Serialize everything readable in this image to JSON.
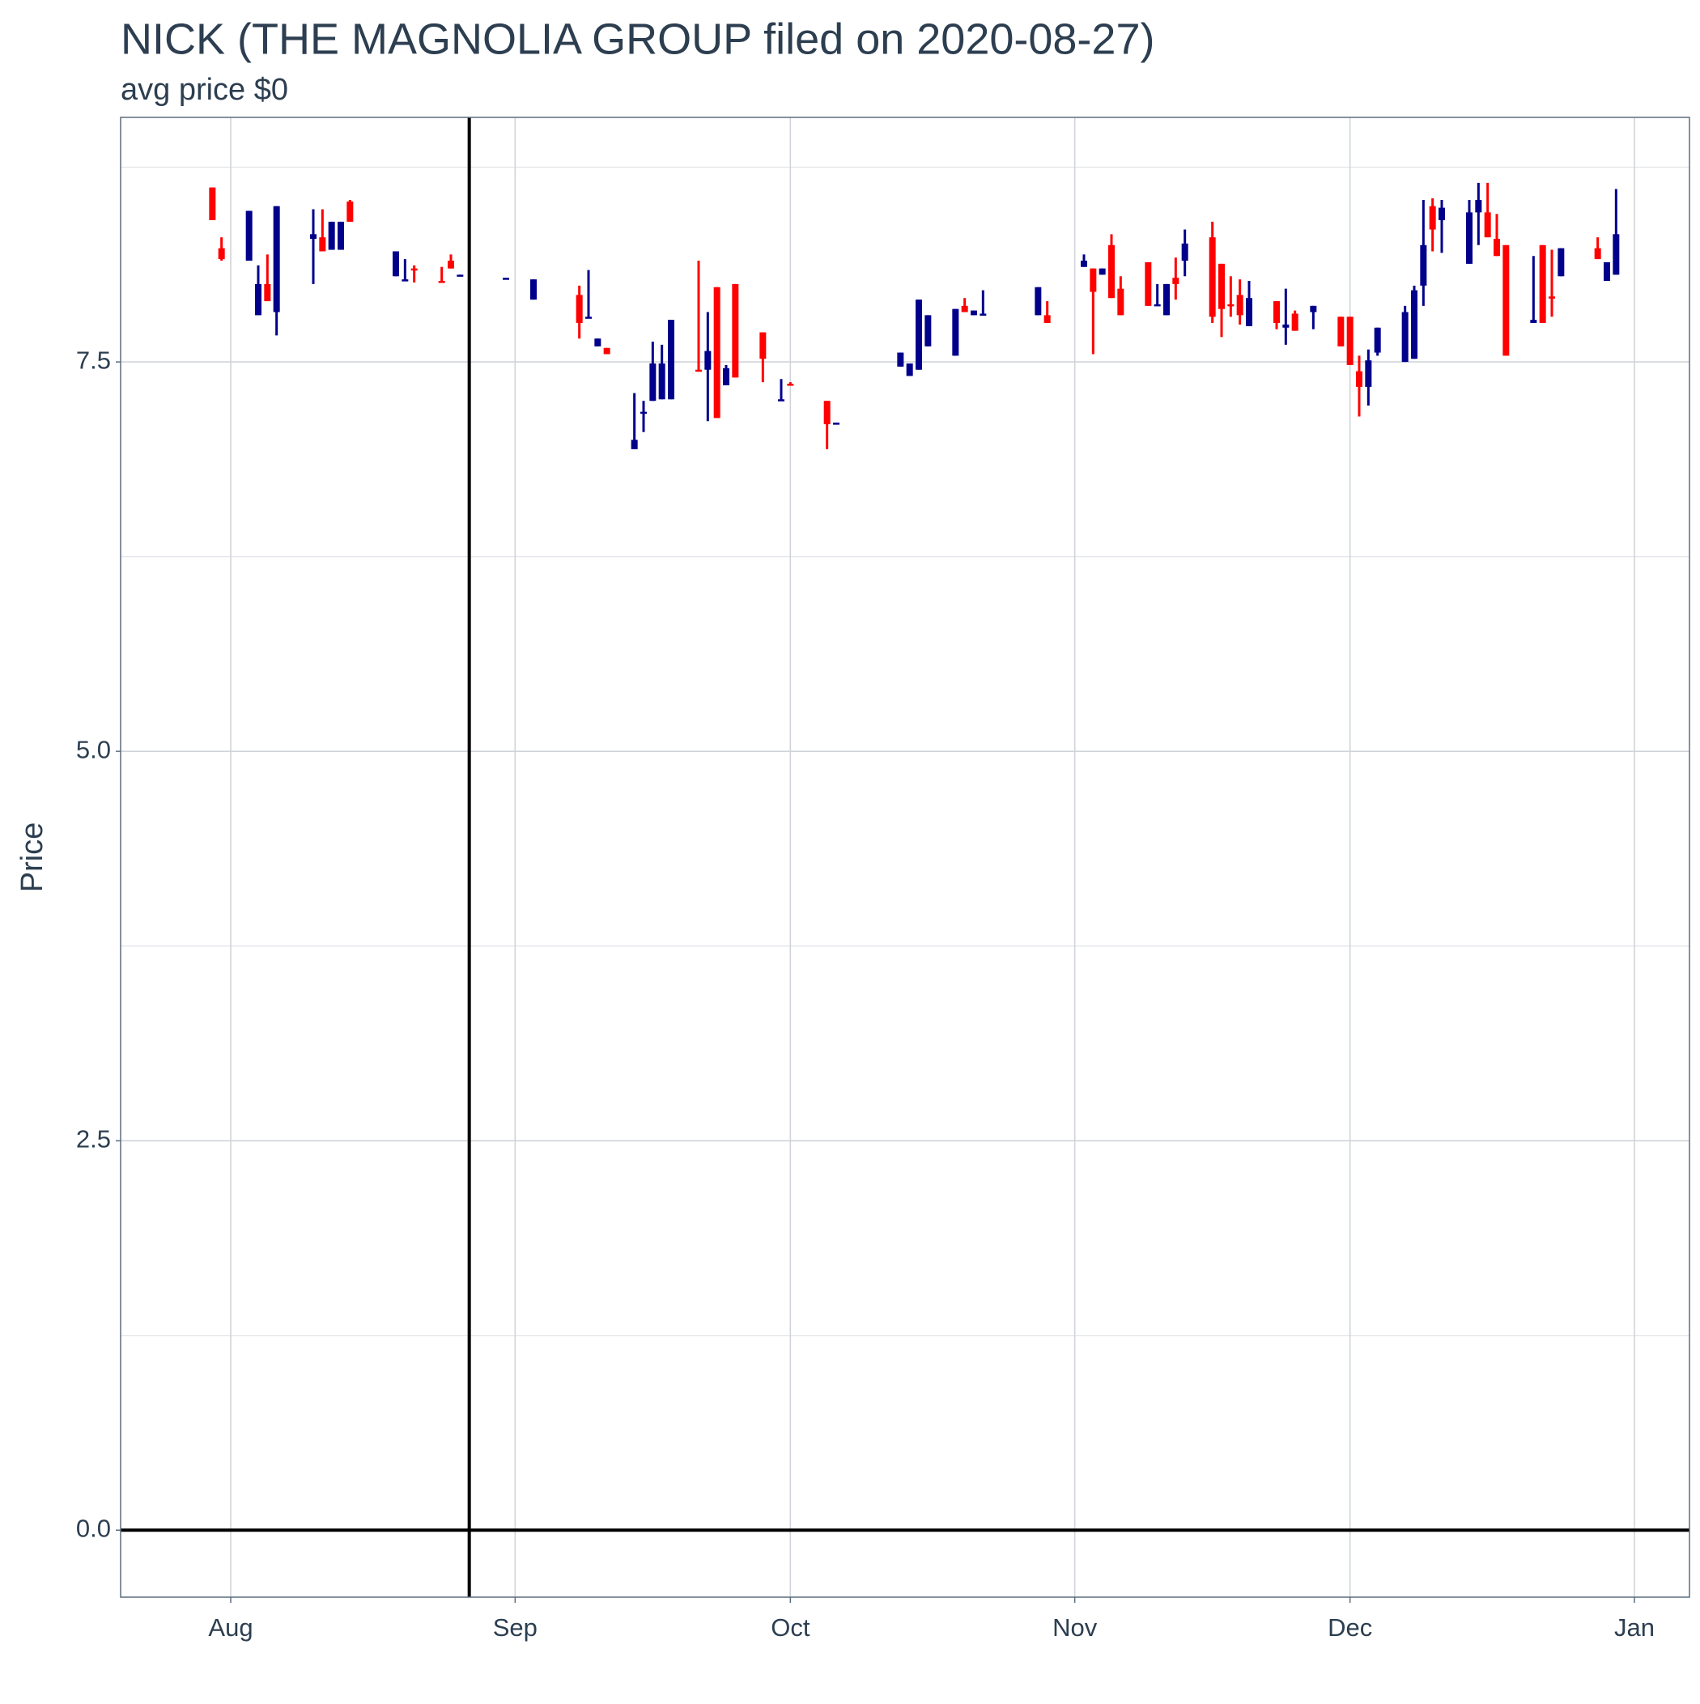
{
  "chart_data": {
    "type": "candlestick",
    "title": "NICK (THE MAGNOLIA GROUP filed on 2020-08-27)",
    "subtitle": "avg price $0",
    "y_label": "Price",
    "up_color": "#00008b",
    "down_color": "#ff0000",
    "grid": true,
    "hline": 0,
    "vline": "2020-08-27",
    "xlim": [
      "2020-07-20",
      "2021-01-07"
    ],
    "xticks": [
      {
        "value": "2020-08-01",
        "label": "Aug"
      },
      {
        "value": "2020-09-01",
        "label": "Sep"
      },
      {
        "value": "2020-10-01",
        "label": "Oct"
      },
      {
        "value": "2020-11-01",
        "label": "Nov"
      },
      {
        "value": "2020-12-01",
        "label": "Dec"
      },
      {
        "value": "2021-01-01",
        "label": "Jan"
      }
    ],
    "ylim": [
      -0.43,
      9.07
    ],
    "yticks": [
      {
        "value": 0,
        "label": "0.0"
      },
      {
        "value": 2.5,
        "label": "2.5"
      },
      {
        "value": 5,
        "label": "5.0"
      },
      {
        "value": 7.5,
        "label": "7.5"
      }
    ],
    "y_minor_ticks": [
      1.25,
      3.75,
      6.25,
      8.75
    ],
    "x": [
      "2020-07-30",
      "2020-07-31",
      "2020-08-03",
      "2020-08-04",
      "2020-08-05",
      "2020-08-06",
      "2020-08-10",
      "2020-08-11",
      "2020-08-12",
      "2020-08-13",
      "2020-08-14",
      "2020-08-19",
      "2020-08-20",
      "2020-08-21",
      "2020-08-24",
      "2020-08-25",
      "2020-08-26",
      "2020-08-31",
      "2020-09-03",
      "2020-09-08",
      "2020-09-09",
      "2020-09-10",
      "2020-09-11",
      "2020-09-14",
      "2020-09-15",
      "2020-09-16",
      "2020-09-17",
      "2020-09-18",
      "2020-09-21",
      "2020-09-22",
      "2020-09-23",
      "2020-09-24",
      "2020-09-25",
      "2020-09-28",
      "2020-09-30",
      "2020-10-01",
      "2020-10-05",
      "2020-10-06",
      "2020-10-13",
      "2020-10-14",
      "2020-10-15",
      "2020-10-16",
      "2020-10-19",
      "2020-10-20",
      "2020-10-21",
      "2020-10-22",
      "2020-10-28",
      "2020-10-29",
      "2020-11-02",
      "2020-11-03",
      "2020-11-04",
      "2020-11-05",
      "2020-11-06",
      "2020-11-09",
      "2020-11-10",
      "2020-11-11",
      "2020-11-12",
      "2020-11-13",
      "2020-11-16",
      "2020-11-17",
      "2020-11-18",
      "2020-11-19",
      "2020-11-20",
      "2020-11-23",
      "2020-11-24",
      "2020-11-25",
      "2020-11-27",
      "2020-11-30",
      "2020-12-01",
      "2020-12-02",
      "2020-12-03",
      "2020-12-04",
      "2020-12-07",
      "2020-12-08",
      "2020-12-09",
      "2020-12-10",
      "2020-12-11",
      "2020-12-14",
      "2020-12-15",
      "2020-12-16",
      "2020-12-17",
      "2020-12-18",
      "2020-12-21",
      "2020-12-22",
      "2020-12-23",
      "2020-12-24",
      "2020-12-28",
      "2020-12-29",
      "2020-12-30"
    ],
    "open": [
      8.62,
      8.23,
      8.15,
      7.8,
      8.0,
      7.82,
      8.29,
      8.3,
      8.22,
      8.22,
      8.53,
      8.05,
      8.02,
      8.1,
      8.02,
      8.15,
      8.05,
      8.03,
      7.9,
      7.93,
      7.78,
      7.6,
      7.59,
      6.94,
      7.17,
      7.25,
      7.26,
      7.26,
      7.45,
      7.45,
      7.98,
      7.35,
      8.0,
      7.69,
      7.25,
      7.36,
      7.25,
      7.1,
      7.47,
      7.41,
      7.45,
      7.6,
      7.54,
      7.86,
      7.8,
      7.8,
      7.8,
      7.8,
      8.11,
      8.1,
      8.06,
      8.25,
      7.97,
      8.14,
      7.86,
      7.8,
      8.04,
      8.15,
      8.3,
      8.13,
      7.87,
      7.93,
      7.73,
      7.89,
      7.72,
      7.81,
      7.82,
      7.79,
      7.79,
      7.44,
      7.34,
      7.56,
      7.5,
      7.52,
      7.99,
      8.5,
      8.41,
      8.13,
      8.46,
      8.46,
      8.29,
      8.25,
      7.75,
      8.25,
      7.92,
      8.05,
      8.23,
      8.02,
      8.06
    ],
    "high": [
      8.62,
      8.3,
      8.47,
      8.12,
      8.19,
      8.5,
      8.48,
      8.48,
      8.4,
      8.4,
      8.54,
      8.21,
      8.16,
      8.12,
      8.11,
      8.19,
      8.06,
      8.04,
      8.03,
      7.99,
      8.09,
      7.65,
      7.59,
      7.3,
      7.25,
      7.63,
      7.61,
      7.77,
      8.15,
      7.82,
      7.98,
      7.48,
      8.0,
      7.69,
      7.39,
      7.37,
      7.25,
      7.11,
      7.56,
      7.49,
      7.9,
      7.8,
      7.84,
      7.91,
      7.83,
      7.96,
      7.98,
      7.89,
      8.19,
      8.1,
      8.1,
      8.32,
      8.05,
      8.14,
      8.0,
      8.0,
      8.17,
      8.35,
      8.4,
      8.13,
      8.05,
      8.03,
      8.02,
      7.89,
      7.97,
      7.83,
      7.86,
      7.79,
      7.79,
      7.54,
      7.58,
      7.72,
      7.86,
      7.99,
      8.54,
      8.55,
      8.54,
      8.54,
      8.65,
      8.65,
      8.45,
      8.25,
      8.18,
      8.25,
      8.22,
      8.23,
      8.3,
      8.14,
      8.61
    ],
    "low": [
      8.41,
      8.15,
      8.15,
      7.8,
      7.89,
      7.67,
      8.0,
      8.21,
      8.22,
      8.22,
      8.4,
      8.05,
      8.02,
      8.01,
      8.01,
      8.1,
      8.05,
      8.03,
      7.9,
      7.65,
      7.78,
      7.6,
      7.55,
      6.94,
      7.05,
      7.25,
      7.26,
      7.26,
      7.44,
      7.12,
      7.14,
      7.35,
      7.4,
      7.37,
      7.25,
      7.35,
      6.94,
      7.1,
      7.47,
      7.41,
      7.45,
      7.6,
      7.54,
      7.82,
      7.8,
      7.8,
      7.8,
      7.75,
      8.11,
      7.55,
      8.06,
      7.91,
      7.8,
      7.86,
      7.86,
      7.8,
      7.9,
      8.05,
      7.75,
      7.66,
      7.79,
      7.74,
      7.73,
      7.71,
      7.61,
      7.7,
      7.71,
      7.6,
      7.48,
      7.15,
      7.22,
      7.54,
      7.5,
      7.52,
      7.86,
      8.21,
      8.2,
      8.13,
      8.25,
      8.3,
      8.18,
      7.54,
      7.75,
      7.75,
      7.79,
      8.05,
      8.16,
      8.02,
      8.06
    ],
    "close": [
      8.41,
      8.16,
      8.47,
      8.0,
      7.89,
      8.5,
      8.32,
      8.21,
      8.4,
      8.4,
      8.4,
      8.21,
      8.03,
      8.09,
      8.01,
      8.1,
      8.06,
      8.04,
      8.03,
      7.75,
      7.79,
      7.65,
      7.55,
      7.0,
      7.18,
      7.49,
      7.49,
      7.77,
      7.44,
      7.57,
      7.14,
      7.46,
      7.4,
      7.52,
      7.26,
      7.35,
      7.1,
      7.11,
      7.56,
      7.49,
      7.9,
      7.8,
      7.84,
      7.82,
      7.83,
      7.81,
      7.98,
      7.75,
      8.15,
      7.95,
      8.1,
      7.91,
      7.8,
      7.86,
      7.87,
      8.0,
      8.0,
      8.26,
      7.79,
      7.84,
      7.86,
      7.8,
      7.91,
      7.75,
      7.74,
      7.7,
      7.86,
      7.6,
      7.48,
      7.34,
      7.51,
      7.72,
      7.82,
      7.96,
      8.25,
      8.35,
      8.49,
      8.46,
      8.54,
      8.3,
      8.18,
      7.54,
      7.77,
      7.75,
      7.91,
      8.23,
      8.16,
      8.14,
      8.32
    ]
  }
}
